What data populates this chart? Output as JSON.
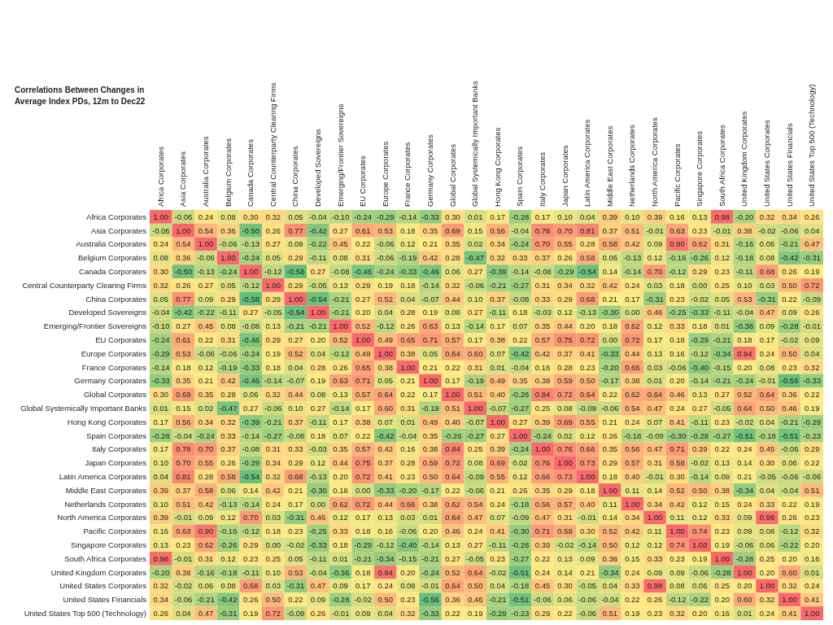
{
  "chart_data": {
    "type": "heatmap",
    "title": "Correlations Between Changes in Average Index PDs, 12m to Dec22",
    "categories": [
      "Africa Corporates",
      "Asia Corporates",
      "Australia Corporates",
      "Belgium Corporates",
      "Canada Corporates",
      "Central Counterparty Clearing Firms",
      "China Corporates",
      "Developed Sovereigns",
      "Emerging/Frontier Sovereigns",
      "EU Corporates",
      "Europe Corporates",
      "France Corporates",
      "Germany Corporates",
      "Global Corporates",
      "Global Systemically Important Banks",
      "Hong Kong Corporates",
      "Spain Corporates",
      "Italy Corporates",
      "Japan Corporates",
      "Latin America Corporates",
      "Middle East Corporates",
      "Netherlands Corporates",
      "North America Corporates",
      "Pacific Corporates",
      "Singapore Corporates",
      "South Africa Corporates",
      "United Kingdom Corporates",
      "United States Corporates",
      "United States Financials",
      "United States Top 500 (Technology)"
    ],
    "y_categories": [
      "Africa Corporates",
      "Asia Corporates",
      "Australia Corporates",
      "Belgium Corporates",
      "Canada Corporates",
      "Central Counterparty Clearing Firms",
      "China Corporates",
      "Developed Sovereigns",
      "Emerging/Frontier Sovereigns",
      "EU Corporates",
      "Europe Corporates",
      "France Corporates",
      "Germany Corporates",
      "Global Corporates",
      "Global Systemically Important Banks",
      "Hong Kong Corporates",
      "Spain Corporates",
      "Italy Corporates",
      "Japan Corporates",
      "Latin America Corporates",
      "Middle East Corporates",
      "Netherlands Corporates",
      "North America Corporates",
      "Pacific Corporates",
      "Singapore Corporates",
      "South Africa Corporates",
      "United Kingdom Corporates",
      "United States Corporates",
      "United States Financials",
      "United States Top 500 (Technology)"
    ],
    "cells": [
      [
        1.0,
        -0.06,
        0.24,
        0.08,
        0.3,
        0.32,
        0.05,
        -0.04,
        -0.1,
        -0.24,
        -0.29,
        -0.14,
        -0.33,
        0.3,
        0.01,
        0.17,
        -0.28,
        0.17,
        0.1,
        0.04,
        0.39,
        0.1,
        0.39,
        0.16,
        0.13,
        0.98,
        -0.2,
        0.32,
        0.34,
        0.26
      ],
      [
        -0.06,
        1.0,
        0.54,
        0.36,
        -0.5,
        0.26,
        0.77,
        -0.42,
        0.27,
        0.61,
        0.53,
        0.18,
        0.35,
        0.69,
        0.15,
        0.56,
        -0.04,
        0.78,
        0.7,
        0.81,
        0.37,
        0.51,
        -0.01,
        0.63,
        0.23,
        -0.01,
        0.38,
        -0.02,
        -0.06,
        0.04
      ],
      [
        0.24,
        0.54,
        1.0,
        -0.06,
        -0.13,
        0.27,
        0.09,
        -0.22,
        0.45,
        0.22,
        -0.06,
        0.12,
        0.21,
        0.35,
        0.02,
        0.34,
        -0.24,
        0.7,
        0.55,
        0.28,
        0.58,
        0.42,
        0.09,
        0.9,
        0.62,
        0.31,
        -0.16,
        0.06,
        -0.21,
        0.47
      ],
      [
        0.08,
        0.36,
        -0.06,
        1.0,
        -0.24,
        0.05,
        0.29,
        -0.11,
        0.08,
        0.31,
        -0.06,
        -0.19,
        0.42,
        0.28,
        -0.47,
        0.32,
        0.33,
        0.37,
        0.26,
        0.58,
        0.06,
        -0.13,
        0.12,
        -0.16,
        -0.26,
        0.12,
        -0.18,
        0.08,
        -0.42,
        -0.31
      ],
      [
        0.3,
        -0.5,
        -0.13,
        -0.24,
        1.0,
        -0.12,
        -0.58,
        0.27,
        -0.08,
        -0.46,
        -0.24,
        -0.33,
        -0.46,
        0.06,
        0.27,
        -0.39,
        -0.14,
        -0.08,
        -0.29,
        -0.54,
        0.14,
        -0.14,
        0.7,
        -0.12,
        0.29,
        0.23,
        -0.11,
        0.68,
        0.26,
        0.19
      ],
      [
        0.32,
        0.26,
        0.27,
        0.05,
        -0.12,
        1.0,
        0.29,
        -0.05,
        0.13,
        0.29,
        0.19,
        0.18,
        -0.14,
        0.32,
        -0.06,
        -0.21,
        -0.27,
        0.31,
        0.34,
        0.32,
        0.42,
        0.24,
        0.03,
        0.18,
        0.0,
        0.25,
        0.1,
        0.03,
        0.5,
        0.72
      ],
      [
        0.05,
        0.77,
        0.09,
        0.29,
        -0.58,
        0.29,
        1.0,
        -0.54,
        -0.21,
        0.27,
        0.52,
        0.04,
        -0.07,
        0.44,
        0.1,
        0.37,
        -0.08,
        0.33,
        0.29,
        0.68,
        0.21,
        0.17,
        -0.31,
        0.23,
        -0.02,
        0.05,
        0.53,
        -0.31,
        0.22,
        -0.09
      ],
      [
        -0.04,
        -0.42,
        -0.22,
        -0.11,
        0.27,
        -0.05,
        -0.54,
        1.0,
        -0.21,
        0.2,
        0.04,
        0.28,
        0.19,
        0.08,
        0.27,
        -0.11,
        0.18,
        -0.03,
        0.12,
        -0.13,
        -0.3,
        0.0,
        0.46,
        -0.25,
        -0.33,
        -0.11,
        -0.04,
        0.47,
        0.09,
        0.26
      ],
      [
        -0.1,
        0.27,
        0.45,
        0.08,
        -0.08,
        0.13,
        -0.21,
        -0.21,
        1.0,
        0.52,
        -0.12,
        0.26,
        0.63,
        0.13,
        -0.14,
        0.17,
        0.07,
        0.35,
        0.44,
        0.2,
        0.18,
        0.62,
        0.12,
        0.33,
        0.18,
        0.01,
        -0.36,
        0.09,
        -0.28,
        -0.01
      ],
      [
        -0.24,
        0.61,
        0.22,
        0.31,
        -0.46,
        0.29,
        0.27,
        0.2,
        0.52,
        1.0,
        0.49,
        0.65,
        0.71,
        0.57,
        0.17,
        0.38,
        0.22,
        0.57,
        0.75,
        0.72,
        0.0,
        0.72,
        0.17,
        0.18,
        -0.29,
        -0.21,
        0.18,
        0.17,
        -0.02,
        0.09
      ],
      [
        -0.29,
        0.53,
        -0.06,
        -0.06,
        -0.24,
        0.19,
        0.52,
        0.04,
        -0.12,
        0.49,
        1.0,
        0.38,
        0.05,
        0.64,
        0.6,
        0.07,
        -0.42,
        0.42,
        0.37,
        0.41,
        -0.33,
        0.44,
        0.13,
        0.16,
        -0.12,
        -0.34,
        0.94,
        0.24,
        0.5,
        0.04
      ],
      [
        -0.14,
        0.18,
        0.12,
        -0.19,
        -0.33,
        0.18,
        0.04,
        0.28,
        0.26,
        0.65,
        0.38,
        1.0,
        0.21,
        0.22,
        0.31,
        0.01,
        -0.04,
        0.16,
        0.28,
        0.23,
        -0.2,
        0.66,
        0.03,
        -0.06,
        -0.4,
        -0.15,
        0.2,
        0.08,
        0.23,
        0.32
      ],
      [
        -0.33,
        0.35,
        0.21,
        0.42,
        -0.46,
        -0.14,
        -0.07,
        0.19,
        0.63,
        0.71,
        0.05,
        0.21,
        1.0,
        0.17,
        -0.19,
        0.49,
        0.35,
        0.38,
        0.59,
        0.5,
        -0.17,
        0.38,
        0.01,
        0.2,
        -0.14,
        -0.21,
        -0.24,
        -0.01,
        -0.56,
        -0.33
      ],
      [
        0.3,
        0.69,
        0.35,
        0.28,
        0.06,
        0.32,
        0.44,
        0.08,
        0.13,
        0.57,
        0.64,
        0.22,
        0.17,
        1.0,
        0.51,
        0.4,
        -0.26,
        0.84,
        0.72,
        0.64,
        0.22,
        0.62,
        0.64,
        0.46,
        0.13,
        0.27,
        0.52,
        0.64,
        0.36,
        0.22
      ],
      [
        0.01,
        0.15,
        0.02,
        -0.47,
        0.27,
        -0.06,
        0.1,
        0.27,
        -0.14,
        0.17,
        0.6,
        0.31,
        -0.19,
        0.51,
        1.0,
        -0.07,
        -0.27,
        0.25,
        0.08,
        -0.09,
        -0.06,
        0.54,
        0.47,
        0.24,
        0.27,
        -0.05,
        0.64,
        0.5,
        0.46,
        0.19
      ],
      [
        0.17,
        0.56,
        0.34,
        0.32,
        -0.39,
        -0.21,
        0.37,
        -0.11,
        0.17,
        0.38,
        0.07,
        0.01,
        0.49,
        0.4,
        -0.07,
        1.0,
        0.27,
        0.39,
        0.69,
        0.55,
        0.21,
        0.24,
        0.07,
        0.41,
        -0.11,
        0.23,
        -0.02,
        0.04,
        -0.21,
        -0.29
      ],
      [
        -0.28,
        -0.04,
        -0.24,
        0.33,
        -0.14,
        -0.27,
        -0.08,
        0.18,
        0.07,
        0.22,
        -0.42,
        -0.04,
        0.35,
        -0.26,
        -0.27,
        0.27,
        1.0,
        -0.24,
        0.02,
        0.12,
        0.26,
        -0.18,
        -0.09,
        -0.3,
        -0.28,
        -0.27,
        -0.51,
        -0.18,
        -0.51,
        -0.23
      ],
      [
        0.17,
        0.78,
        0.7,
        0.37,
        -0.08,
        0.31,
        0.33,
        -0.03,
        0.35,
        0.57,
        0.42,
        0.16,
        0.38,
        0.84,
        0.25,
        0.39,
        -0.24,
        1.0,
        0.76,
        0.66,
        0.35,
        0.56,
        0.47,
        0.71,
        0.39,
        0.22,
        0.24,
        0.45,
        -0.06,
        0.29
      ],
      [
        0.1,
        0.7,
        0.55,
        0.26,
        -0.29,
        0.34,
        0.29,
        0.12,
        0.44,
        0.75,
        0.37,
        0.28,
        0.59,
        0.72,
        0.08,
        0.69,
        0.02,
        0.76,
        1.0,
        0.73,
        0.29,
        0.57,
        0.31,
        0.58,
        -0.02,
        0.13,
        0.14,
        0.3,
        0.06,
        0.22
      ],
      [
        0.04,
        0.81,
        0.28,
        0.58,
        -0.54,
        0.32,
        0.68,
        -0.13,
        0.2,
        0.72,
        0.41,
        0.23,
        0.5,
        0.64,
        -0.09,
        0.55,
        0.12,
        0.66,
        0.73,
        1.0,
        0.18,
        0.4,
        -0.01,
        0.3,
        -0.14,
        0.09,
        0.21,
        -0.05,
        -0.06,
        -0.06
      ],
      [
        0.39,
        0.37,
        0.58,
        0.06,
        0.14,
        0.42,
        0.21,
        -0.3,
        0.18,
        0.0,
        -0.33,
        -0.2,
        -0.17,
        0.22,
        -0.06,
        0.21,
        0.26,
        0.35,
        0.29,
        0.18,
        1.0,
        0.11,
        0.14,
        0.52,
        0.5,
        0.38,
        -0.34,
        0.04,
        -0.04,
        0.51
      ],
      [
        0.1,
        0.51,
        0.42,
        -0.13,
        -0.14,
        0.24,
        0.17,
        0.0,
        0.62,
        0.72,
        0.44,
        0.66,
        0.38,
        0.62,
        0.54,
        0.24,
        -0.18,
        0.56,
        0.57,
        0.4,
        0.11,
        1.0,
        0.34,
        0.42,
        0.12,
        0.15,
        0.24,
        0.33,
        0.22,
        0.19
      ],
      [
        0.39,
        -0.01,
        0.09,
        0.12,
        0.7,
        0.03,
        -0.31,
        0.46,
        0.12,
        0.17,
        0.13,
        0.03,
        0.01,
        0.64,
        0.47,
        0.07,
        -0.09,
        0.47,
        0.31,
        -0.01,
        0.14,
        0.34,
        1.0,
        0.11,
        0.12,
        0.33,
        0.09,
        0.98,
        0.26,
        0.23
      ],
      [
        0.16,
        0.63,
        0.9,
        -0.16,
        -0.12,
        0.18,
        0.23,
        -0.25,
        0.33,
        0.18,
        0.16,
        -0.06,
        0.2,
        0.46,
        0.24,
        0.41,
        -0.3,
        0.71,
        0.58,
        0.3,
        0.52,
        0.42,
        0.11,
        1.0,
        0.74,
        0.23,
        0.09,
        0.08,
        -0.12,
        0.32
      ],
      [
        0.13,
        0.23,
        0.62,
        -0.26,
        0.29,
        0.0,
        -0.02,
        -0.33,
        0.18,
        -0.29,
        -0.12,
        -0.4,
        -0.14,
        0.13,
        0.27,
        -0.11,
        -0.28,
        0.39,
        -0.02,
        -0.14,
        0.5,
        0.12,
        0.12,
        0.74,
        1.0,
        0.19,
        -0.06,
        0.06,
        -0.22,
        0.2
      ],
      [
        0.98,
        -0.01,
        0.31,
        0.12,
        0.23,
        0.25,
        0.05,
        -0.11,
        0.01,
        -0.21,
        -0.34,
        -0.15,
        -0.21,
        0.27,
        -0.05,
        0.23,
        -0.27,
        0.22,
        0.13,
        0.09,
        0.38,
        0.15,
        0.33,
        0.23,
        0.19,
        1.0,
        -0.28,
        0.25,
        0.2,
        0.16
      ],
      [
        -0.2,
        0.38,
        -0.16,
        -0.18,
        -0.11,
        0.1,
        0.53,
        -0.04,
        -0.36,
        0.18,
        0.94,
        0.2,
        -0.24,
        0.52,
        0.64,
        -0.02,
        -0.51,
        0.24,
        0.14,
        0.21,
        -0.34,
        0.24,
        0.09,
        0.09,
        -0.06,
        -0.28,
        1.0,
        0.2,
        0.6,
        0.01
      ],
      [
        0.32,
        -0.02,
        0.06,
        0.08,
        0.68,
        0.03,
        -0.31,
        0.47,
        0.09,
        0.17,
        0.24,
        0.08,
        -0.01,
        0.64,
        0.5,
        0.04,
        -0.18,
        0.45,
        0.3,
        -0.05,
        0.04,
        0.33,
        0.98,
        0.08,
        0.06,
        0.25,
        0.2,
        1.0,
        0.32,
        0.24
      ],
      [
        0.34,
        -0.06,
        -0.21,
        -0.42,
        0.26,
        0.5,
        0.22,
        0.09,
        -0.28,
        -0.02,
        0.5,
        0.23,
        -0.56,
        0.36,
        0.46,
        -0.21,
        -0.51,
        -0.06,
        0.06,
        -0.06,
        -0.04,
        0.22,
        0.26,
        -0.12,
        -0.22,
        0.2,
        0.6,
        0.32,
        1.0,
        0.41
      ],
      [
        0.26,
        0.04,
        0.47,
        -0.31,
        0.19,
        0.72,
        -0.09,
        0.26,
        -0.01,
        0.09,
        0.04,
        0.32,
        -0.33,
        0.22,
        0.19,
        -0.29,
        -0.23,
        0.29,
        0.22,
        -0.06,
        0.51,
        0.19,
        0.23,
        0.32,
        0.2,
        0.16,
        0.01,
        0.24,
        0.41,
        1.0
      ]
    ],
    "cell_labels": [
      [
        "1.00",
        "-0.06",
        "0.24",
        "0.08",
        "0.30",
        "0.32",
        "0.05",
        "-0.04",
        "-0.10",
        "-0.24",
        "-0.29",
        "-0.14",
        "-0.33",
        "0.30",
        "0.01",
        "0.17",
        "-0.28",
        "0.17",
        "0.10",
        "0.04",
        "0.39",
        "0.10",
        "0.39",
        "0.16",
        "0.13",
        "0.98",
        "-0.20",
        "0.32",
        "0.34",
        "0.26"
      ],
      [
        "-0.06",
        "1.00",
        "0.54",
        "0.36",
        "-0.50",
        "0.26",
        "0.77",
        "-0.42",
        "0.27",
        "0.61",
        "0.53",
        "0.18",
        "0.35",
        "0.69",
        "0.15",
        "0.56",
        "-0.04",
        "0.78",
        "0.70",
        "0.81",
        "0.37",
        "0.51",
        "-0.01",
        "0.63",
        "0.23",
        "-0.01",
        "0.38",
        "-0.02",
        "-0.06",
        "0.04"
      ],
      [
        "0.24",
        "0.54",
        "1.00",
        "-0.06",
        "-0.13",
        "0.27",
        "0.09",
        "-0.22",
        "0.45",
        "0.22",
        "-0.06",
        "0.12",
        "0.21",
        "0.35",
        "0.02",
        "0.34",
        "-0.24",
        "0.70",
        "0.55",
        "0.28",
        "0.58",
        "0.42",
        "0.09",
        "0.90",
        "0.62",
        "0.31",
        "-0.16",
        "0.06",
        "-0.21",
        "0.47"
      ],
      [
        "0.08",
        "0.36",
        "-0.06",
        "1.00",
        "-0.24",
        "0.05",
        "0.29",
        "-0.11",
        "0.08",
        "0.31",
        "-0.06",
        "-0.19",
        "0.42",
        "0.28",
        "-0.47",
        "0.32",
        "0.33",
        "0.37",
        "0.26",
        "0.58",
        "0.06",
        "-0.13",
        "0.12",
        "-0.16",
        "-0.26",
        "0.12",
        "-0.18",
        "0.08",
        "-0.42",
        "-0.31"
      ],
      [
        "0.30",
        "-0.50",
        "-0.13",
        "-0.24",
        "1.00",
        "-0.12",
        "-0.58",
        "0.27",
        "-0.08",
        "-0.46",
        "-0.24",
        "-0.33",
        "-0.46",
        "0.06",
        "0.27",
        "-0.39",
        "-0.14",
        "-0.08",
        "-0.29",
        "-0.54",
        "0.14",
        "-0.14",
        "0.70",
        "-0.12",
        "0.29",
        "0.23",
        "-0.11",
        "0.68",
        "0.26",
        "0.19"
      ],
      [
        "0.32",
        "0.26",
        "0.27",
        "0.05",
        "-0.12",
        "1.00",
        "0.29",
        "-0.05",
        "0.13",
        "0.29",
        "0.19",
        "0.18",
        "-0.14",
        "0.32",
        "-0.06",
        "-0.21",
        "-0.27",
        "0.31",
        "0.34",
        "0.32",
        "0.42",
        "0.24",
        "0.03",
        "0.18",
        "0.00",
        "0.25",
        "0.10",
        "0.03",
        "0.50",
        "0.72"
      ],
      [
        "0.05",
        "0.77",
        "0.09",
        "0.29",
        "-0.58",
        "0.29",
        "1.00",
        "-0.54",
        "-0.21",
        "0.27",
        "0.52",
        "0.04",
        "-0.07",
        "0.44",
        "0.10",
        "0.37",
        "-0.08",
        "0.33",
        "0.29",
        "0.68",
        "0.21",
        "0.17",
        "-0.31",
        "0.23",
        "-0.02",
        "0.05",
        "0.53",
        "-0.31",
        "0.22",
        "-0.09"
      ],
      [
        "-0.04",
        "-0.42",
        "-0.22",
        "-0.11",
        "0.27",
        "-0.05",
        "-0.54",
        "1.00",
        "-0.21",
        "0.20",
        "0.04",
        "0.28",
        "0.19",
        "0.08",
        "0.27",
        "-0.11",
        "0.18",
        "-0.03",
        "0.12",
        "-0.13",
        "-0.30",
        "0.00",
        "0.46",
        "-0.25",
        "-0.33",
        "-0.11",
        "-0.04",
        "0.47",
        "0.09",
        "0.26"
      ],
      [
        "-0.10",
        "0.27",
        "0.45",
        "0.08",
        "-0.08",
        "0.13",
        "-0.21",
        "-0.21",
        "1.00",
        "0.52",
        "-0.12",
        "0.26",
        "0.63",
        "0.13",
        "-0.14",
        "0.17",
        "0.07",
        "0.35",
        "0.44",
        "0.20",
        "0.18",
        "0.62",
        "0.12",
        "0.33",
        "0.18",
        "0.01",
        "-0.36",
        "0.09",
        "-0.28",
        "-0.01"
      ],
      [
        "-0.24",
        "0.61",
        "0.22",
        "0.31",
        "-0.46",
        "0.29",
        "0.27",
        "0.20",
        "0.52",
        "1.00",
        "0.49",
        "0.65",
        "0.71",
        "0.57",
        "0.17",
        "0.38",
        "0.22",
        "0.57",
        "0.75",
        "0.72",
        "0.00",
        "0.72",
        "0.17",
        "0.18",
        "-0.29",
        "-0.21",
        "0.18",
        "0.17",
        "-0.02",
        "0.09"
      ],
      [
        "-0.29",
        "0.53",
        "-0.06",
        "-0.06",
        "-0.24",
        "0.19",
        "0.52",
        "0.04",
        "-0.12",
        "0.49",
        "1.00",
        "0.38",
        "0.05",
        "0.64",
        "0.60",
        "0.07",
        "-0.42",
        "0.42",
        "0.37",
        "0.41",
        "-0.33",
        "0.44",
        "0.13",
        "0.16",
        "-0.12",
        "-0.34",
        "0.94",
        "0.24",
        "0.50",
        "0.04"
      ],
      [
        "-0.14",
        "0.18",
        "0.12",
        "-0.19",
        "-0.33",
        "0.18",
        "0.04",
        "0.28",
        "0.26",
        "0.65",
        "0.38",
        "1.00",
        "0.21",
        "0.22",
        "0.31",
        "0.01",
        "-0.04",
        "0.16",
        "0.28",
        "0.23",
        "-0.20",
        "0.66",
        "0.03",
        "-0.06",
        "-0.40",
        "-0.15",
        "0.20",
        "0.08",
        "0.23",
        "0.32"
      ],
      [
        "-0.33",
        "0.35",
        "0.21",
        "0.42",
        "-0.46",
        "-0.14",
        "-0.07",
        "0.19",
        "0.63",
        "0.71",
        "0.05",
        "0.21",
        "1.00",
        "0.17",
        "-0.19",
        "0.49",
        "0.35",
        "0.38",
        "0.59",
        "0.50",
        "-0.17",
        "0.38",
        "0.01",
        "0.20",
        "-0.14",
        "-0.21",
        "-0.24",
        "-0.01",
        "-0.56",
        "-0.33"
      ],
      [
        "0.30",
        "0.69",
        "0.35",
        "0.28",
        "0.06",
        "0.32",
        "0.44",
        "0.08",
        "0.13",
        "0.57",
        "0.64",
        "0.22",
        "0.17",
        "1.00",
        "0.51",
        "0.40",
        "-0.26",
        "0.84",
        "0.72",
        "0.64",
        "0.22",
        "0.62",
        "0.64",
        "0.46",
        "0.13",
        "0.27",
        "0.52",
        "0.64",
        "0.36",
        "0.22"
      ],
      [
        "0.01",
        "0.15",
        "0.02",
        "-0.47",
        "0.27",
        "-0.06",
        "0.10",
        "0.27",
        "-0.14",
        "0.17",
        "0.60",
        "0.31",
        "-0.19",
        "0.51",
        "1.00",
        "-0.07",
        "-0.27",
        "0.25",
        "0.08",
        "-0.09",
        "-0.06",
        "0.54",
        "0.47",
        "0.24",
        "0.27",
        "-0.05",
        "0.64",
        "0.50",
        "0.46",
        "0.19"
      ],
      [
        "0.17",
        "0.56",
        "0.34",
        "0.32",
        "-0.39",
        "-0.21",
        "0.37",
        "-0.11",
        "0.17",
        "0.38",
        "0.07",
        "0.01",
        "0.49",
        "0.40",
        "-0.07",
        "1.00",
        "0.27",
        "0.39",
        "0.69",
        "0.55",
        "0.21",
        "0.24",
        "0.07",
        "0.41",
        "-0.11",
        "0.23",
        "-0.02",
        "0.04",
        "-0.21",
        "-0.29"
      ],
      [
        "-0.28",
        "-0.04",
        "-0.24",
        "0.33",
        "-0.14",
        "-0.27",
        "-0.08",
        "0.18",
        "0.07",
        "0.22",
        "-0.42",
        "-0.04",
        "0.35",
        "-0.26",
        "-0.27",
        "0.27",
        "1.00",
        "-0.24",
        "0.02",
        "0.12",
        "0.26",
        "-0.18",
        "-0.09",
        "-0.30",
        "-0.28",
        "-0.27",
        "-0.51",
        "-0.18",
        "-0.51",
        "-0.23"
      ],
      [
        "0.17",
        "0.78",
        "0.70",
        "0.37",
        "-0.08",
        "0.31",
        "0.33",
        "-0.03",
        "0.35",
        "0.57",
        "0.42",
        "0.16",
        "0.38",
        "0.84",
        "0.25",
        "0.39",
        "-0.24",
        "1.00",
        "0.76",
        "0.66",
        "0.35",
        "0.56",
        "0.47",
        "0.71",
        "0.39",
        "0.22",
        "0.24",
        "0.45",
        "-0.06",
        "0.29"
      ],
      [
        "0.10",
        "0.70",
        "0.55",
        "0.26",
        "-0.29",
        "0.34",
        "0.29",
        "0.12",
        "0.44",
        "0.75",
        "0.37",
        "0.28",
        "0.59",
        "0.72",
        "0.08",
        "0.69",
        "0.02",
        "0.76",
        "1.00",
        "0.73",
        "0.29",
        "0.57",
        "0.31",
        "0.58",
        "-0.02",
        "0.13",
        "0.14",
        "0.30",
        "0.06",
        "0.22"
      ],
      [
        "0.04",
        "0.81",
        "0.28",
        "0.58",
        "-0.54",
        "0.32",
        "0.68",
        "-0.13",
        "0.20",
        "0.72",
        "0.41",
        "0.23",
        "0.50",
        "0.64",
        "-0.09",
        "0.55",
        "0.12",
        "0.66",
        "0.73",
        "1.00",
        "0.18",
        "0.40",
        "-0.01",
        "0.30",
        "-0.14",
        "0.09",
        "0.21",
        "-0.05",
        "-0.06",
        "-0.06"
      ],
      [
        "0.39",
        "0.37",
        "0.58",
        "0.06",
        "0.14",
        "0.42",
        "0.21",
        "-0.30",
        "0.18",
        "0.00",
        "-0.33",
        "-0.20",
        "-0.17",
        "0.22",
        "-0.06",
        "0.21",
        "0.26",
        "0.35",
        "0.29",
        "0.18",
        "1.00",
        "0.11",
        "0.14",
        "0.52",
        "0.50",
        "0.38",
        "-0.34",
        "0.04",
        "-0.04",
        "0.51"
      ],
      [
        "0.10",
        "0.51",
        "0.42",
        "-0.13",
        "-0.14",
        "0.24",
        "0.17",
        "0.00",
        "0.62",
        "0.72",
        "0.44",
        "0.66",
        "0.38",
        "0.62",
        "0.54",
        "0.24",
        "-0.18",
        "0.56",
        "0.57",
        "0.40",
        "0.11",
        "1.00",
        "0.34",
        "0.42",
        "0.12",
        "0.15",
        "0.24",
        "0.33",
        "0.22",
        "0.19"
      ],
      [
        "0.39",
        "-0.01",
        "0.09",
        "0.12",
        "0.70",
        "0.03",
        "-0.31",
        "0.46",
        "0.12",
        "0.17",
        "0.13",
        "0.03",
        "0.01",
        "0.64",
        "0.47",
        "0.07",
        "-0.09",
        "0.47",
        "0.31",
        "-0.01",
        "0.14",
        "0.34",
        "1.00",
        "0.11",
        "0.12",
        "0.33",
        "0.09",
        "0.98",
        "0.26",
        "0.23"
      ],
      [
        "0.16",
        "0.63",
        "0.90",
        "-0.16",
        "-0.12",
        "0.18",
        "0.23",
        "-0.25",
        "0.33",
        "0.18",
        "0.16",
        "-0.06",
        "0.20",
        "0.46",
        "0.24",
        "0.41",
        "-0.30",
        "0.71",
        "0.58",
        "0.30",
        "0.52",
        "0.42",
        "0.11",
        "1.00",
        "0.74",
        "0.23",
        "0.09",
        "0.08",
        "-0.12",
        "0.32"
      ],
      [
        "0.13",
        "0.23",
        "0.62",
        "-0.26",
        "0.29",
        "0.00",
        "-0.02",
        "-0.33",
        "0.18",
        "-0.29",
        "-0.12",
        "-0.40",
        "-0.14",
        "0.13",
        "0.27",
        "-0.11",
        "-0.28",
        "0.39",
        "-0.02",
        "-0.14",
        "0.50",
        "0.12",
        "0.12",
        "0.74",
        "1.00",
        "0.19",
        "-0.06",
        "0.06",
        "-0.22",
        "0.20"
      ],
      [
        "0.98",
        "-0.01",
        "0.31",
        "0.12",
        "0.23",
        "0.25",
        "0.05",
        "-0.11",
        "0.01",
        "-0.21",
        "-0.34",
        "-0.15",
        "-0.21",
        "0.27",
        "-0.05",
        "0.23",
        "-0.27",
        "0.22",
        "0.13",
        "0.09",
        "0.38",
        "0.15",
        "0.33",
        "0.23",
        "0.19",
        "1.00",
        "-0.28",
        "0.25",
        "0.20",
        "0.16"
      ],
      [
        "-0.20",
        "0.38",
        "-0.16",
        "-0.18",
        "-0.11",
        "0.10",
        "0.53",
        "-0.04",
        "-0.36",
        "0.18",
        "0.94",
        "0.20",
        "-0.24",
        "0.52",
        "0.64",
        "-0.02",
        "-0.51",
        "0.24",
        "0.14",
        "0.21",
        "-0.34",
        "0.24",
        "0.09",
        "0.09",
        "-0.06",
        "-0.28",
        "1.00",
        "0.20",
        "0.60",
        "0.01"
      ],
      [
        "0.32",
        "-0.02",
        "0.06",
        "0.08",
        "0.68",
        "0.03",
        "-0.31",
        "0.47",
        "0.09",
        "0.17",
        "0.24",
        "0.08",
        "-0.01",
        "0.64",
        "0.50",
        "0.04",
        "-0.18",
        "0.45",
        "0.30",
        "-0.05",
        "0.04",
        "0.33",
        "0.98",
        "0.08",
        "0.06",
        "0.25",
        "0.20",
        "1.00",
        "0.32",
        "0.24"
      ],
      [
        "0.34",
        "-0.06",
        "-0.21",
        "-0.42",
        "0.26",
        "0.50",
        "0.22",
        "0.09",
        "-0.28",
        "-0.02",
        "0.50",
        "0.23",
        "-0.56",
        "0.36",
        "0.46",
        "-0.21",
        "-0.51",
        "-0.06",
        "0.06",
        "-0.06",
        "-0.04",
        "0.22",
        "0.26",
        "-0.12",
        "-0.22",
        "0.20",
        "0.60",
        "0.32",
        "1.00",
        "0.41"
      ],
      [
        "0.26",
        "0.04",
        "0.47",
        "-0.31",
        "0.19",
        "0.72",
        "-0.09",
        "0.26",
        "-0.01",
        "0.09",
        "0.04",
        "0.32",
        "-0.33",
        "0.22",
        "0.19",
        "-0.29",
        "-0.23",
        "0.29",
        "0.22",
        "-0.06",
        "0.51",
        "0.19",
        "0.23",
        "0.32",
        "0.20",
        "0.16",
        "0.01",
        "0.24",
        "0.41",
        "1.00"
      ]
    ],
    "colors": [
      "#63be7b",
      "#ffeb84",
      "#f8696b"
    ],
    "data_labels": true
  }
}
